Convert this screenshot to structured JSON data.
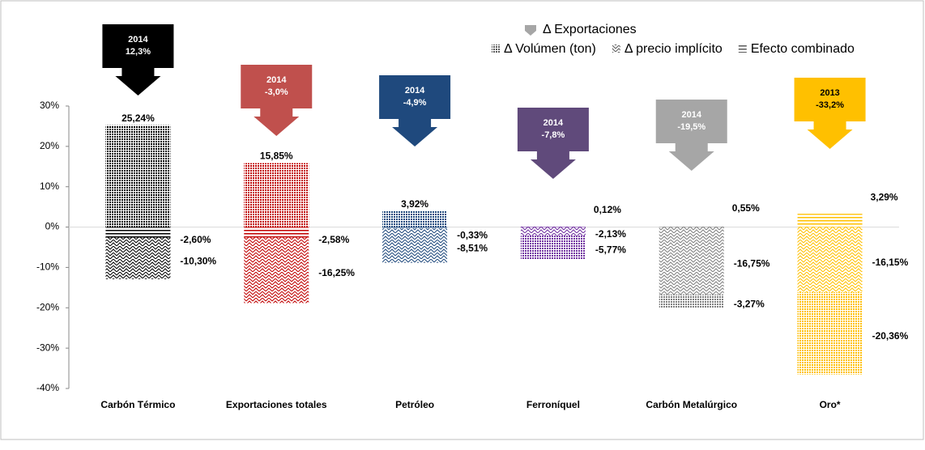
{
  "chart_data": {
    "type": "stacked-bar",
    "categories": [
      "Carbón Térmico",
      "Exportaciones totales",
      "Petróleo",
      "Ferroníquel",
      "Carbón  Metalúrgico",
      "Oro*"
    ],
    "category_colors": [
      "#000000",
      "#c00000",
      "#1f497d",
      "#7030a0",
      "#7f7f7f",
      "#ffc000"
    ],
    "ylim": [
      -40,
      30
    ],
    "yticks": [
      {
        "value": 30,
        "label": "30%"
      },
      {
        "value": 20,
        "label": "20%"
      },
      {
        "value": 10,
        "label": "10%"
      },
      {
        "value": 0,
        "label": "0%"
      },
      {
        "value": -10,
        "label": "-10%"
      },
      {
        "value": -20,
        "label": "-20%"
      },
      {
        "value": -30,
        "label": "-30%"
      },
      {
        "value": -40,
        "label": "-40%"
      }
    ],
    "series": [
      {
        "name": "Efecto combinado",
        "pattern": "lines",
        "values": [
          -2.6,
          -2.58,
          -0.33,
          0.12,
          0.55,
          3.29
        ],
        "value_labels": [
          "-2,60%",
          "-2,58%",
          "-0,33%",
          "0,12%",
          "0,55%",
          "3,29%"
        ]
      },
      {
        "name": "Δ precio implícito",
        "pattern": "hatch",
        "values": [
          -10.3,
          -16.25,
          -8.51,
          -2.13,
          -16.75,
          -16.15
        ],
        "value_labels": [
          "-10,30%",
          "-16,25%",
          "-8,51%",
          "-2,13%",
          "-16,75%",
          "-16,15%"
        ]
      },
      {
        "name": "Δ Volúmen (ton)",
        "pattern": "dots",
        "values": [
          25.24,
          15.85,
          3.92,
          -5.77,
          -3.27,
          -20.36
        ],
        "value_labels": [
          "25,24%",
          "15,85%",
          "3,92%",
          "-5,77%",
          "-3,27%",
          "-20,36%"
        ]
      }
    ],
    "callouts": {
      "name": "Δ Exportaciones",
      "years": [
        "2014",
        "2014",
        "2014",
        "2014",
        "2014",
        "2013"
      ],
      "values": [
        12.3,
        -3.0,
        -4.9,
        -7.8,
        -19.5,
        -33.2
      ],
      "value_labels": [
        "12,3%",
        "-3,0%",
        "-4,9%",
        "-7,8%",
        "-19,5%",
        "-33,2%"
      ],
      "colors": [
        "#000000",
        "#c0504d",
        "#1f497d",
        "#604a7b",
        "#a6a6a6",
        "#ffc000"
      ]
    }
  }
}
